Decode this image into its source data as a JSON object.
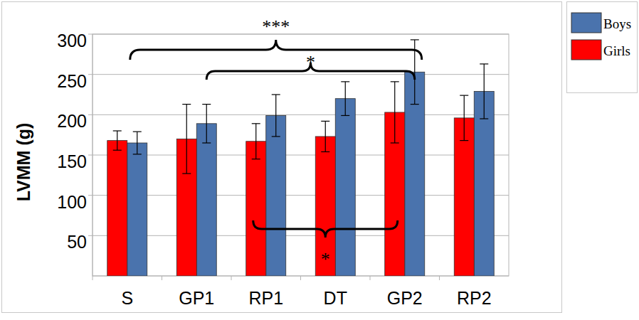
{
  "chart_data": {
    "type": "bar",
    "y_label": "LVMM (g)",
    "categories": [
      "S",
      "GP1",
      "RP1",
      "DT",
      "GP2",
      "RP2"
    ],
    "series": [
      {
        "name": "Boys",
        "color": "#4a73ad",
        "values": [
          165,
          189,
          199,
          220,
          253,
          229
        ],
        "errors": [
          14,
          24,
          26,
          21,
          40,
          34
        ]
      },
      {
        "name": "Girls",
        "color": "#ff0000",
        "values": [
          168,
          170,
          167,
          173,
          203,
          196
        ],
        "errors": [
          12,
          43,
          22,
          19,
          38,
          28
        ]
      }
    ],
    "ylim": [
      0,
      300
    ],
    "yticks": [
      50,
      100,
      150,
      200,
      250,
      300
    ],
    "grid": true,
    "legend": "top-right",
    "annotations": [
      {
        "text": "***",
        "series": "Boys",
        "between": [
          "S",
          "GP2"
        ]
      },
      {
        "text": "*",
        "series": "Boys",
        "between": [
          "GP1",
          "GP2"
        ]
      },
      {
        "text": "*",
        "series": "Girls",
        "between": [
          "RP1",
          "GP2"
        ]
      }
    ]
  }
}
